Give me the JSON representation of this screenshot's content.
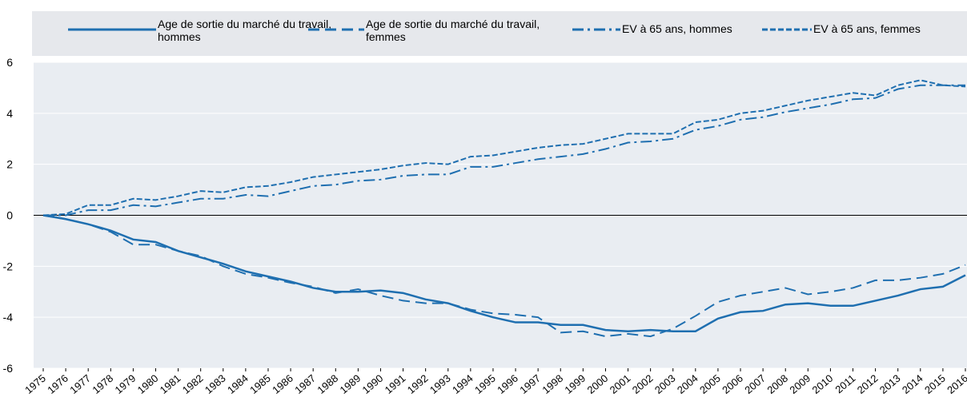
{
  "chart_data": {
    "type": "line",
    "categories": [
      "1975",
      "1976",
      "1977",
      "1978",
      "1979",
      "1980",
      "1981",
      "1982",
      "1983",
      "1984",
      "1985",
      "1986",
      "1987",
      "1988",
      "1989",
      "1990",
      "1991",
      "1992",
      "1993",
      "1994",
      "1995",
      "1996",
      "1997",
      "1998",
      "1999",
      "2000",
      "2001",
      "2002",
      "2003",
      "2004",
      "2005",
      "2006",
      "2007",
      "2008",
      "2009",
      "2010",
      "2011",
      "2012",
      "2013",
      "2014",
      "2015",
      "2016"
    ],
    "series": [
      {
        "name": "Age de sortie du marché du travail, hommes",
        "color": "#1f6fb0",
        "style": "solid",
        "values": [
          0,
          -0.15,
          -0.35,
          -0.6,
          -0.95,
          -1.05,
          -1.4,
          -1.65,
          -1.9,
          -2.2,
          -2.4,
          -2.6,
          -2.85,
          -3.0,
          -3.0,
          -2.95,
          -3.05,
          -3.3,
          -3.45,
          -3.75,
          -4.0,
          -4.2,
          -4.2,
          -4.3,
          -4.3,
          -4.5,
          -4.55,
          -4.5,
          -4.55,
          -4.55,
          -4.05,
          -3.8,
          -3.75,
          -3.5,
          -3.45,
          -3.55,
          -3.55,
          -3.35,
          -3.15,
          -2.9,
          -2.8,
          -2.35
        ]
      },
      {
        "name": "Age de sortie du marché du travail, femmes",
        "color": "#1f6fb0",
        "style": "dashed",
        "values": [
          0,
          -0.15,
          -0.35,
          -0.65,
          -1.15,
          -1.15,
          -1.4,
          -1.6,
          -2.0,
          -2.3,
          -2.45,
          -2.65,
          -2.8,
          -3.05,
          -2.9,
          -3.15,
          -3.35,
          -3.45,
          -3.45,
          -3.7,
          -3.85,
          -3.9,
          -4.0,
          -4.6,
          -4.55,
          -4.75,
          -4.65,
          -4.75,
          -4.45,
          -3.95,
          -3.4,
          -3.15,
          -3.0,
          -2.85,
          -3.1,
          -3.0,
          -2.85,
          -2.55,
          -2.55,
          -2.45,
          -2.3,
          -1.95
        ]
      },
      {
        "name": "EV à 65 ans, hommes",
        "color": "#1f6fb0",
        "style": "dashdot",
        "values": [
          0,
          0.0,
          0.2,
          0.2,
          0.4,
          0.35,
          0.5,
          0.65,
          0.65,
          0.8,
          0.75,
          0.95,
          1.15,
          1.2,
          1.35,
          1.4,
          1.55,
          1.6,
          1.6,
          1.9,
          1.9,
          2.05,
          2.2,
          2.3,
          2.4,
          2.6,
          2.85,
          2.9,
          3.0,
          3.35,
          3.5,
          3.75,
          3.85,
          4.05,
          4.2,
          4.35,
          4.55,
          4.6,
          4.95,
          5.1,
          5.1,
          5.1
        ]
      },
      {
        "name": "EV à 65 ans, femmes",
        "color": "#1f6fb0",
        "style": "shortdash",
        "values": [
          0,
          0.05,
          0.4,
          0.4,
          0.65,
          0.6,
          0.75,
          0.95,
          0.9,
          1.1,
          1.15,
          1.3,
          1.5,
          1.6,
          1.7,
          1.8,
          1.95,
          2.05,
          2.0,
          2.3,
          2.35,
          2.5,
          2.65,
          2.75,
          2.8,
          3.0,
          3.2,
          3.2,
          3.2,
          3.65,
          3.75,
          4.0,
          4.1,
          4.3,
          4.5,
          4.65,
          4.8,
          4.7,
          5.1,
          5.3,
          5.1,
          5.05
        ]
      }
    ],
    "ylim": [
      -6,
      6
    ],
    "yticks": [
      -6,
      -4,
      -2,
      0,
      2,
      4,
      6
    ],
    "grid": true
  }
}
